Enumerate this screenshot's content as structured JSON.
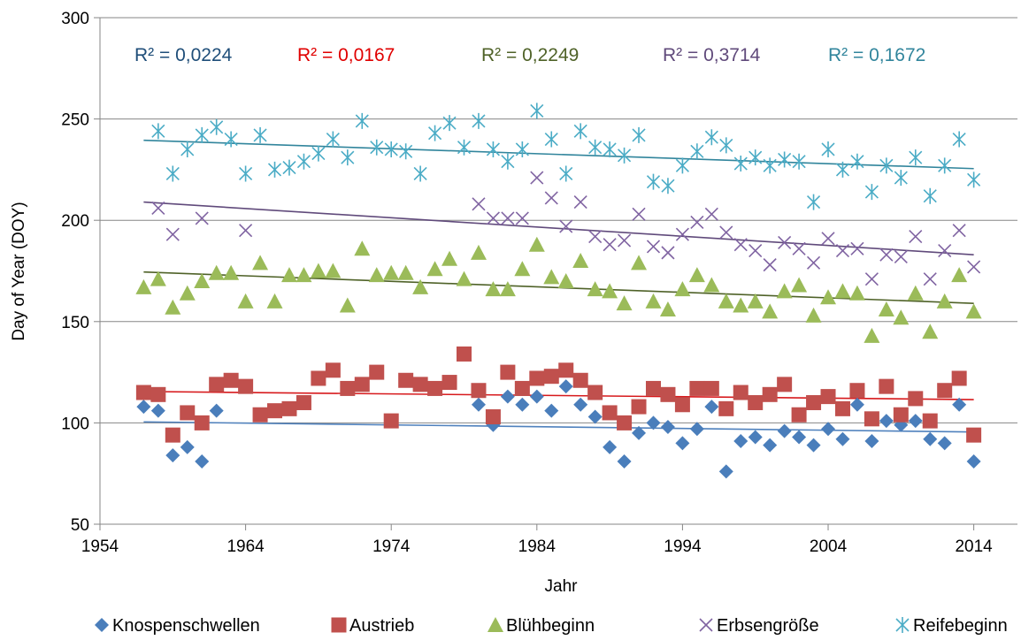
{
  "chart_data": {
    "type": "scatter",
    "title": "",
    "xlabel": "Jahr",
    "ylabel": "Day of Year (DOY)",
    "xlim": [
      1954,
      2017
    ],
    "ylim": [
      50,
      300
    ],
    "x_ticks": [
      1954,
      1964,
      1974,
      1984,
      1994,
      2004,
      2014
    ],
    "y_ticks": [
      50,
      100,
      150,
      200,
      250,
      300
    ],
    "grid": "horizontal",
    "legend_position": "bottom",
    "series": [
      {
        "name": "Knospenschwellen",
        "marker": "diamond",
        "color": "#4A7EBB",
        "trend_color": "#4F81BD",
        "r2_label": "R² = 0,0224",
        "r2_color": "#1F4E79",
        "trend": [
          [
            1957,
            100.5
          ],
          [
            2014,
            95.5
          ]
        ],
        "points": [
          [
            1957,
            108
          ],
          [
            1958,
            106
          ],
          [
            1959,
            84
          ],
          [
            1960,
            88
          ],
          [
            1961,
            81
          ],
          [
            1962,
            106
          ],
          [
            1980,
            109
          ],
          [
            1981,
            99
          ],
          [
            1982,
            113
          ],
          [
            1983,
            109
          ],
          [
            1984,
            113
          ],
          [
            1985,
            106
          ],
          [
            1986,
            118
          ],
          [
            1987,
            109
          ],
          [
            1988,
            103
          ],
          [
            1989,
            88
          ],
          [
            1990,
            81
          ],
          [
            1991,
            95
          ],
          [
            1992,
            100
          ],
          [
            1993,
            98
          ],
          [
            1994,
            90
          ],
          [
            1995,
            97
          ],
          [
            1996,
            108
          ],
          [
            1997,
            76
          ],
          [
            1998,
            91
          ],
          [
            1999,
            93
          ],
          [
            2000,
            89
          ],
          [
            2001,
            96
          ],
          [
            2002,
            93
          ],
          [
            2003,
            89
          ],
          [
            2004,
            97
          ],
          [
            2005,
            92
          ],
          [
            2006,
            109
          ],
          [
            2007,
            91
          ],
          [
            2008,
            101
          ],
          [
            2009,
            99
          ],
          [
            2010,
            101
          ],
          [
            2011,
            92
          ],
          [
            2012,
            90
          ],
          [
            2013,
            109
          ],
          [
            2014,
            81
          ]
        ]
      },
      {
        "name": "Austrieb",
        "marker": "square",
        "color": "#C0504D",
        "trend_color": "#D7191C",
        "r2_label": "R² = 0,0167",
        "r2_color": "#E00000",
        "trend": [
          [
            1957,
            115.5
          ],
          [
            2014,
            111.5
          ]
        ],
        "points": [
          [
            1957,
            115
          ],
          [
            1958,
            114
          ],
          [
            1959,
            94
          ],
          [
            1960,
            105
          ],
          [
            1961,
            100
          ],
          [
            1962,
            119
          ],
          [
            1963,
            121
          ],
          [
            1964,
            118
          ],
          [
            1965,
            104
          ],
          [
            1966,
            106
          ],
          [
            1967,
            107
          ],
          [
            1968,
            110
          ],
          [
            1969,
            122
          ],
          [
            1970,
            126
          ],
          [
            1971,
            117
          ],
          [
            1972,
            119
          ],
          [
            1973,
            125
          ],
          [
            1974,
            101
          ],
          [
            1975,
            121
          ],
          [
            1976,
            119
          ],
          [
            1977,
            117
          ],
          [
            1978,
            120
          ],
          [
            1979,
            134
          ],
          [
            1980,
            116
          ],
          [
            1981,
            103
          ],
          [
            1982,
            125
          ],
          [
            1983,
            117
          ],
          [
            1984,
            122
          ],
          [
            1985,
            123
          ],
          [
            1986,
            126
          ],
          [
            1987,
            121
          ],
          [
            1988,
            115
          ],
          [
            1989,
            105
          ],
          [
            1990,
            100
          ],
          [
            1991,
            108
          ],
          [
            1992,
            117
          ],
          [
            1993,
            114
          ],
          [
            1994,
            109
          ],
          [
            1995,
            117
          ],
          [
            1996,
            117
          ],
          [
            1997,
            107
          ],
          [
            1998,
            115
          ],
          [
            1999,
            110
          ],
          [
            2000,
            114
          ],
          [
            2001,
            119
          ],
          [
            2002,
            104
          ],
          [
            2003,
            110
          ],
          [
            2004,
            113
          ],
          [
            2005,
            107
          ],
          [
            2006,
            116
          ],
          [
            2007,
            102
          ],
          [
            2008,
            118
          ],
          [
            2009,
            104
          ],
          [
            2010,
            112
          ],
          [
            2011,
            101
          ],
          [
            2012,
            116
          ],
          [
            2013,
            122
          ],
          [
            2014,
            94
          ]
        ]
      },
      {
        "name": "Blühbeginn",
        "marker": "triangle",
        "color": "#9BBB59",
        "trend_color": "#4F6228",
        "r2_label": "R² = 0,2249",
        "r2_color": "#4F6228",
        "trend": [
          [
            1957,
            174.5
          ],
          [
            2014,
            159
          ]
        ],
        "points": [
          [
            1957,
            167
          ],
          [
            1958,
            171
          ],
          [
            1959,
            157
          ],
          [
            1960,
            164
          ],
          [
            1961,
            170
          ],
          [
            1962,
            174
          ],
          [
            1963,
            174
          ],
          [
            1964,
            160
          ],
          [
            1965,
            179
          ],
          [
            1966,
            160
          ],
          [
            1967,
            173
          ],
          [
            1968,
            173
          ],
          [
            1969,
            175
          ],
          [
            1970,
            175
          ],
          [
            1971,
            158
          ],
          [
            1972,
            186
          ],
          [
            1973,
            173
          ],
          [
            1974,
            174
          ],
          [
            1975,
            174
          ],
          [
            1976,
            167
          ],
          [
            1977,
            176
          ],
          [
            1978,
            181
          ],
          [
            1979,
            171
          ],
          [
            1980,
            184
          ],
          [
            1981,
            166
          ],
          [
            1982,
            166
          ],
          [
            1983,
            176
          ],
          [
            1984,
            188
          ],
          [
            1985,
            172
          ],
          [
            1986,
            170
          ],
          [
            1987,
            180
          ],
          [
            1988,
            166
          ],
          [
            1989,
            165
          ],
          [
            1990,
            159
          ],
          [
            1991,
            179
          ],
          [
            1992,
            160
          ],
          [
            1993,
            156
          ],
          [
            1994,
            166
          ],
          [
            1995,
            173
          ],
          [
            1996,
            168
          ],
          [
            1997,
            160
          ],
          [
            1998,
            158
          ],
          [
            1999,
            160
          ],
          [
            2000,
            155
          ],
          [
            2001,
            165
          ],
          [
            2002,
            168
          ],
          [
            2003,
            153
          ],
          [
            2004,
            162
          ],
          [
            2005,
            165
          ],
          [
            2006,
            164
          ],
          [
            2007,
            143
          ],
          [
            2008,
            156
          ],
          [
            2009,
            152
          ],
          [
            2010,
            164
          ],
          [
            2011,
            145
          ],
          [
            2012,
            160
          ],
          [
            2013,
            173
          ],
          [
            2014,
            155
          ]
        ]
      },
      {
        "name": "Erbsengröße",
        "marker": "x",
        "color": "#8064A2",
        "trend_color": "#604A7B",
        "r2_label": "R² = 0,3714",
        "r2_color": "#604A7B",
        "trend": [
          [
            1957,
            209
          ],
          [
            2014,
            183
          ]
        ],
        "points": [
          [
            1958,
            206
          ],
          [
            1959,
            193
          ],
          [
            1961,
            201
          ],
          [
            1964,
            195
          ],
          [
            1980,
            208
          ],
          [
            1981,
            201
          ],
          [
            1982,
            201
          ],
          [
            1983,
            201
          ],
          [
            1984,
            221
          ],
          [
            1985,
            211
          ],
          [
            1986,
            197
          ],
          [
            1987,
            209
          ],
          [
            1988,
            192
          ],
          [
            1989,
            188
          ],
          [
            1990,
            190
          ],
          [
            1991,
            203
          ],
          [
            1992,
            187
          ],
          [
            1993,
            184
          ],
          [
            1994,
            193
          ],
          [
            1995,
            199
          ],
          [
            1996,
            203
          ],
          [
            1997,
            194
          ],
          [
            1998,
            188
          ],
          [
            1999,
            185
          ],
          [
            2000,
            178
          ],
          [
            2001,
            189
          ],
          [
            2002,
            186
          ],
          [
            2003,
            179
          ],
          [
            2004,
            191
          ],
          [
            2005,
            185
          ],
          [
            2006,
            186
          ],
          [
            2007,
            171
          ],
          [
            2008,
            183
          ],
          [
            2009,
            182
          ],
          [
            2010,
            192
          ],
          [
            2011,
            171
          ],
          [
            2012,
            185
          ],
          [
            2013,
            195
          ],
          [
            2014,
            177
          ]
        ]
      },
      {
        "name": "Reifebeginn",
        "marker": "asterisk",
        "color": "#4BACC6",
        "trend_color": "#31859C",
        "r2_label": "R² = 0,1672",
        "r2_color": "#31859C",
        "trend": [
          [
            1957,
            239.5
          ],
          [
            2014,
            225.5
          ]
        ],
        "points": [
          [
            1958,
            244
          ],
          [
            1959,
            223
          ],
          [
            1960,
            235
          ],
          [
            1961,
            242
          ],
          [
            1962,
            246
          ],
          [
            1963,
            240
          ],
          [
            1964,
            223
          ],
          [
            1965,
            242
          ],
          [
            1966,
            225
          ],
          [
            1967,
            226
          ],
          [
            1968,
            229
          ],
          [
            1969,
            233
          ],
          [
            1970,
            240
          ],
          [
            1971,
            231
          ],
          [
            1972,
            249
          ],
          [
            1973,
            236
          ],
          [
            1974,
            235
          ],
          [
            1975,
            234
          ],
          [
            1976,
            223
          ],
          [
            1977,
            243
          ],
          [
            1978,
            248
          ],
          [
            1979,
            236
          ],
          [
            1980,
            249
          ],
          [
            1981,
            235
          ],
          [
            1982,
            229
          ],
          [
            1983,
            235
          ],
          [
            1984,
            254
          ],
          [
            1985,
            240
          ],
          [
            1986,
            223
          ],
          [
            1987,
            244
          ],
          [
            1988,
            236
          ],
          [
            1989,
            235
          ],
          [
            1990,
            232
          ],
          [
            1991,
            242
          ],
          [
            1992,
            219
          ],
          [
            1993,
            217
          ],
          [
            1994,
            227
          ],
          [
            1995,
            234
          ],
          [
            1996,
            241
          ],
          [
            1997,
            237
          ],
          [
            1998,
            228
          ],
          [
            1999,
            231
          ],
          [
            2000,
            227
          ],
          [
            2001,
            230
          ],
          [
            2002,
            229
          ],
          [
            2003,
            209
          ],
          [
            2004,
            235
          ],
          [
            2005,
            225
          ],
          [
            2006,
            229
          ],
          [
            2007,
            214
          ],
          [
            2008,
            227
          ],
          [
            2009,
            221
          ],
          [
            2010,
            231
          ],
          [
            2011,
            212
          ],
          [
            2012,
            227
          ],
          [
            2013,
            240
          ],
          [
            2014,
            220
          ]
        ]
      }
    ]
  }
}
